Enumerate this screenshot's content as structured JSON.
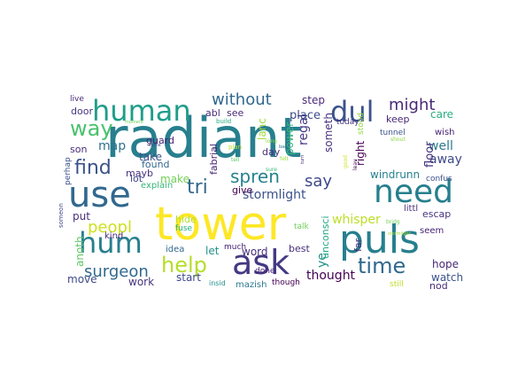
{
  "words": [
    {
      "text": "radiant",
      "color": "#277f8e"
    },
    {
      "text": "tower",
      "color": "#fde725"
    },
    {
      "text": "puls",
      "color": "#277f8e"
    },
    {
      "text": "use",
      "color": "#31688e"
    },
    {
      "text": "ask",
      "color": "#443983"
    },
    {
      "text": "need",
      "color": "#277f8e"
    },
    {
      "text": "hum",
      "color": "#277f8e"
    },
    {
      "text": "human",
      "color": "#1f9e89"
    },
    {
      "text": "dul",
      "color": "#3b528b"
    },
    {
      "text": "help",
      "color": "#b5de2b"
    },
    {
      "text": "way",
      "color": "#4ac16d"
    },
    {
      "text": "time",
      "color": "#31688e"
    },
    {
      "text": "find",
      "color": "#3b528b"
    },
    {
      "text": "tri",
      "color": "#31688e"
    },
    {
      "text": "spren",
      "color": "#26828e"
    },
    {
      "text": "might",
      "color": "#482878"
    },
    {
      "text": "peopl",
      "color": "#cde11d"
    },
    {
      "text": "surgeon",
      "color": "#31688e"
    },
    {
      "text": "without",
      "color": "#31688e"
    },
    {
      "text": "say",
      "color": "#3e4989"
    },
    {
      "text": "whisper",
      "color": "#bddf26"
    },
    {
      "text": "thought",
      "color": "#440154"
    },
    {
      "text": "well",
      "color": "#2a788e"
    },
    {
      "text": "away",
      "color": "#3e4989"
    },
    {
      "text": "floor",
      "color": "#46337e"
    },
    {
      "text": "hope",
      "color": "#482878"
    },
    {
      "text": "watch",
      "color": "#3b528b"
    },
    {
      "text": "nod",
      "color": "#472d7b"
    },
    {
      "text": "map",
      "color": "#2c728e"
    },
    {
      "text": "son",
      "color": "#472d7b"
    },
    {
      "text": "word",
      "color": "#472d7b"
    },
    {
      "text": "let",
      "color": "#21918c"
    },
    {
      "text": "ye",
      "color": "#21918c"
    },
    {
      "text": "regal",
      "color": "#443983"
    },
    {
      "text": "someth",
      "color": "#46337e"
    },
    {
      "text": "fabrial",
      "color": "#482475"
    },
    {
      "text": "place",
      "color": "#3e4989"
    },
    {
      "text": "step",
      "color": "#482878"
    },
    {
      "text": "care",
      "color": "#27ad81"
    },
    {
      "text": "keep",
      "color": "#482878"
    },
    {
      "text": "stormlight",
      "color": "#3b528b"
    },
    {
      "text": "windrunn",
      "color": "#26828e"
    },
    {
      "text": "escap",
      "color": "#46337e"
    },
    {
      "text": "seem",
      "color": "#482475"
    },
    {
      "text": "littl",
      "color": "#472d7b"
    },
    {
      "text": "anoth",
      "color": "#5ec962"
    },
    {
      "text": "put",
      "color": "#472d7b"
    },
    {
      "text": "move",
      "color": "#3e4989"
    },
    {
      "text": "work",
      "color": "#46337e"
    },
    {
      "text": "start",
      "color": "#3e4989"
    },
    {
      "text": "best",
      "color": "#472d7b"
    },
    {
      "text": "unconsci",
      "color": "#22a884"
    },
    {
      "text": "make",
      "color": "#73d056"
    },
    {
      "text": "take",
      "color": "#3b528b"
    },
    {
      "text": "found",
      "color": "#31688e"
    },
    {
      "text": "guard",
      "color": "#482475"
    },
    {
      "text": "give",
      "color": "#440154"
    },
    {
      "text": "day",
      "color": "#472d7b"
    },
    {
      "text": "lot",
      "color": "#3e4989"
    },
    {
      "text": "mayb",
      "color": "#46337e"
    },
    {
      "text": "explain",
      "color": "#35b779"
    },
    {
      "text": "kind",
      "color": "#472d7b"
    },
    {
      "text": "hide",
      "color": "#b5de2b"
    },
    {
      "text": "fuse",
      "color": "#27ad81"
    },
    {
      "text": "idea",
      "color": "#31688e"
    },
    {
      "text": "much",
      "color": "#482475"
    },
    {
      "text": "mazish",
      "color": "#2a788e"
    },
    {
      "text": "though",
      "color": "#440154"
    },
    {
      "text": "right",
      "color": "#440154"
    },
    {
      "text": "far",
      "color": "#472d7b"
    },
    {
      "text": "power",
      "color": "#35b779"
    },
    {
      "text": "lanc",
      "color": "#a0da39"
    },
    {
      "text": "abl",
      "color": "#472d7b"
    },
    {
      "text": "see",
      "color": "#482878"
    },
    {
      "text": "today",
      "color": "#46337e"
    },
    {
      "text": "tunnel",
      "color": "#3b528b"
    },
    {
      "text": "wish",
      "color": "#482475"
    },
    {
      "text": "confus",
      "color": "#3b528b"
    },
    {
      "text": "live",
      "color": "#482878"
    },
    {
      "text": "door",
      "color": "#46337e"
    },
    {
      "text": "perhap",
      "color": "#3b528b"
    },
    {
      "text": "talk",
      "color": "#6ece58"
    },
    {
      "text": "still",
      "color": "#bddf26"
    },
    {
      "text": "stood",
      "color": "#90d743"
    },
    {
      "text": "insid",
      "color": "#21918c"
    },
    {
      "text": "tell",
      "color": "#5ec962"
    },
    {
      "text": "plan",
      "color": "#b5de2b"
    },
    {
      "text": "long",
      "color": "#90d743"
    },
    {
      "text": "felt",
      "color": "#a0da39"
    },
    {
      "text": "moment",
      "color": "#6ece58"
    },
    {
      "text": "build",
      "color": "#27ad81"
    },
    {
      "text": "shout",
      "color": "#90d743"
    },
    {
      "text": "done",
      "color": "#482475"
    },
    {
      "text": "someon",
      "color": "#3e4989"
    },
    {
      "text": "good",
      "color": "#cde11d"
    },
    {
      "text": "bad",
      "color": "#2c728e"
    },
    {
      "text": "turn",
      "color": "#482878"
    },
    {
      "text": "bridg",
      "color": "#73d056"
    },
    {
      "text": "sure",
      "color": "#35b779"
    },
    {
      "text": "leav",
      "color": "#440154"
    },
    {
      "text": "stormlight",
      "color": "#a0da39"
    },
    {
      "text": "come",
      "color": "#3e4989"
    }
  ]
}
